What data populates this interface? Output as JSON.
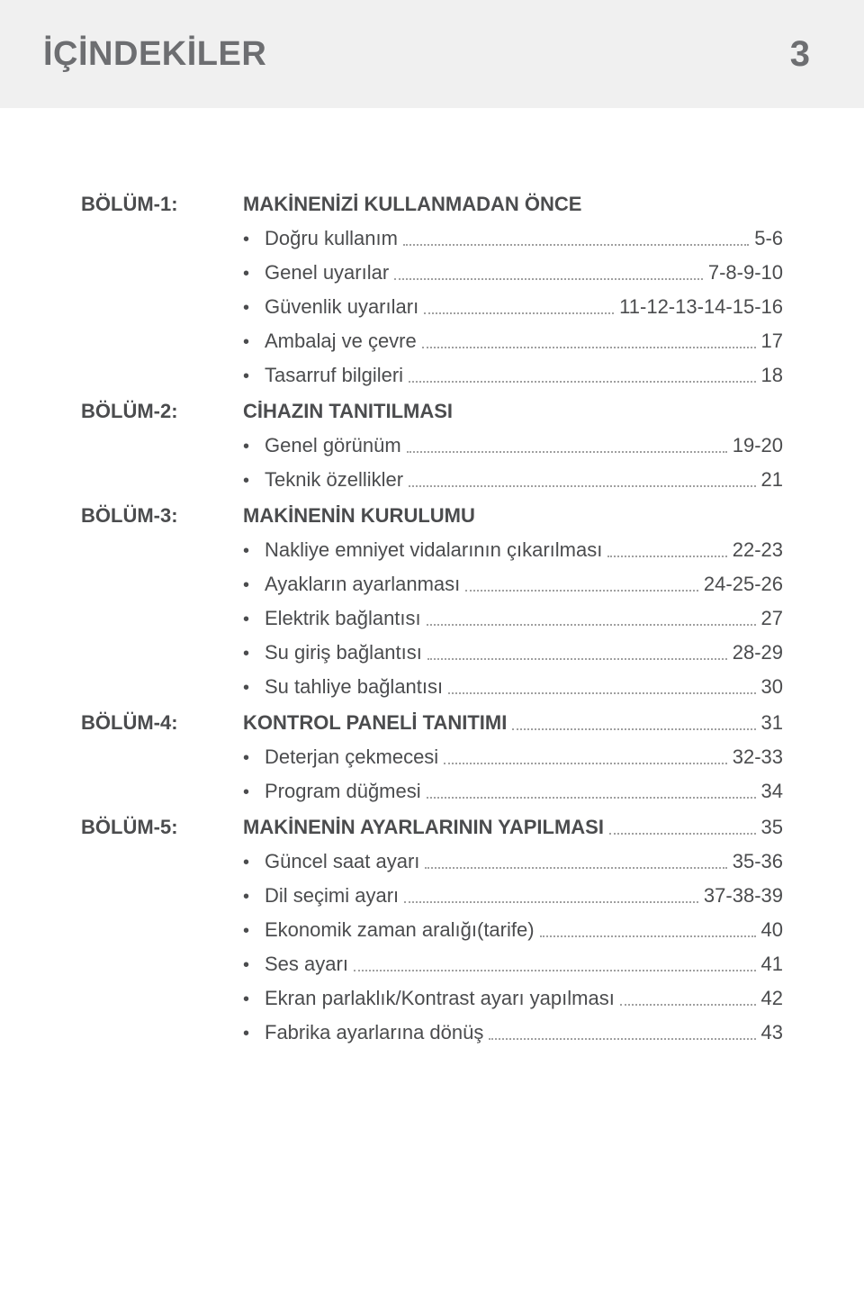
{
  "header": {
    "title": "İÇİNDEKİLER",
    "page_number": "3"
  },
  "colors": {
    "header_bg": "#f0f0f0",
    "header_text": "#6d6e71",
    "body_text": "#4b4c4e",
    "leader": "#a0a0a0",
    "page_bg": "#ffffff"
  },
  "typography": {
    "header_title_fontsize": 38,
    "header_page_fontsize": 40,
    "section_fontsize": 22,
    "item_fontsize": 22,
    "font_family": "Arial"
  },
  "sections": [
    {
      "label": "BÖLÜM-1:",
      "title": "MAKİNENİZİ KULLANMADAN ÖNCE",
      "title_page": "",
      "title_has_leader": false,
      "items": [
        {
          "text": "Doğru kullanım",
          "page": "5-6"
        },
        {
          "text": "Genel uyarılar",
          "page": "7-8-9-10"
        },
        {
          "text": "Güvenlik uyarıları",
          "page": "11-12-13-14-15-16"
        },
        {
          "text": "Ambalaj ve çevre",
          "page": "17"
        },
        {
          "text": "Tasarruf bilgileri",
          "page": "18"
        }
      ]
    },
    {
      "label": "BÖLÜM-2:",
      "title": "CİHAZIN TANITILMASI",
      "title_page": "",
      "title_has_leader": false,
      "items": [
        {
          "text": "Genel görünüm",
          "page": "19-20"
        },
        {
          "text": "Teknik özellikler",
          "page": "21"
        }
      ]
    },
    {
      "label": "BÖLÜM-3:",
      "title": "MAKİNENİN KURULUMU",
      "title_page": "",
      "title_has_leader": false,
      "items": [
        {
          "text": "Nakliye emniyet vidalarının çıkarılması",
          "page": "22-23"
        },
        {
          "text": "Ayakların ayarlanması",
          "page": "24-25-26"
        },
        {
          "text": "Elektrik bağlantısı",
          "page": "27"
        },
        {
          "text": "Su giriş bağlantısı",
          "page": "28-29"
        },
        {
          "text": "Su tahliye bağlantısı",
          "page": "30"
        }
      ]
    },
    {
      "label": "BÖLÜM-4:",
      "title": "KONTROL PANELİ TANITIMI",
      "title_page": "31",
      "title_has_leader": true,
      "items": [
        {
          "text": "Deterjan çekmecesi",
          "page": "32-33"
        },
        {
          "text": "Program düğmesi",
          "page": "34"
        }
      ]
    },
    {
      "label": "BÖLÜM-5:",
      "title": "MAKİNENİN AYARLARININ YAPILMASI",
      "title_page": "35",
      "title_has_leader": true,
      "items": [
        {
          "text": "Güncel saat ayarı",
          "page": "35-36"
        },
        {
          "text": "Dil seçimi ayarı",
          "page": "37-38-39"
        },
        {
          "text": "Ekonomik zaman aralığı(tarife)",
          "page": "40"
        },
        {
          "text": "Ses ayarı",
          "page": "41"
        },
        {
          "text": "Ekran parlaklık/Kontrast ayarı yapılması",
          "page": "42"
        },
        {
          "text": "Fabrika ayarlarına dönüş",
          "page": "43"
        }
      ]
    }
  ]
}
